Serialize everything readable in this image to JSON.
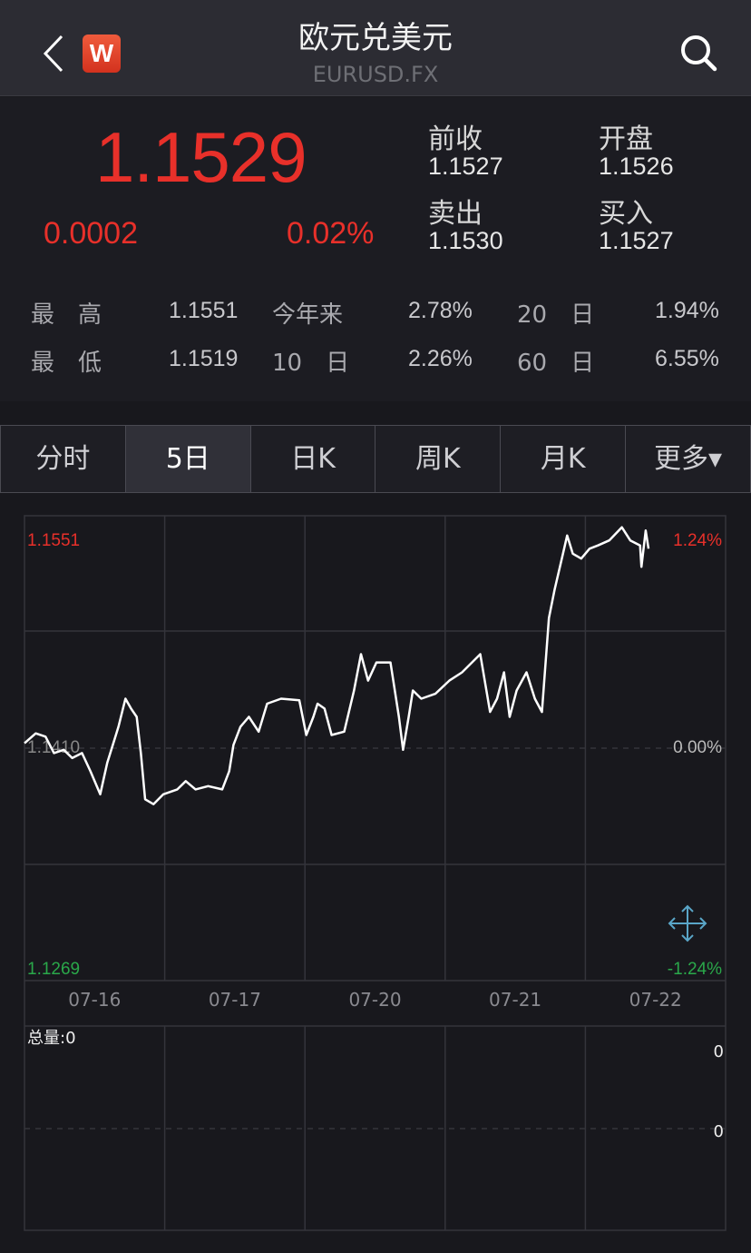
{
  "header": {
    "title": "欧元兑美元",
    "symbol": "EURUSD.FX",
    "back_icon": "chevron-left-icon",
    "logo_text": "W",
    "search_icon": "search-icon"
  },
  "quote": {
    "price": "1.1529",
    "change": "0.0002",
    "change_pct": "0.02%",
    "up_color": "#e8302a",
    "prev_close_label": "前收",
    "prev_close": "1.1527",
    "open_label": "开盘",
    "open": "1.1526",
    "sell_label": "卖出",
    "sell": "1.1530",
    "buy_label": "买入",
    "buy": "1.1527"
  },
  "stats": [
    {
      "label": "最　高",
      "value": "1.1551",
      "label2": "今年来",
      "value2": "2.78%",
      "label3": "20　日",
      "value3": "1.94%"
    },
    {
      "label": "最　低",
      "value": "1.1519",
      "label2": "10　日",
      "value2": "2.26%",
      "label3": "60　日",
      "value3": "6.55%"
    }
  ],
  "tabs": [
    {
      "label": "分时"
    },
    {
      "label": "5日",
      "active": true
    },
    {
      "label": "日K"
    },
    {
      "label": "周K"
    },
    {
      "label": "月K"
    },
    {
      "label": "更多▾"
    }
  ],
  "chart_data": {
    "type": "line",
    "ylim": [
      1.1269,
      1.1551
    ],
    "base": 1.141,
    "y_labels": {
      "top": "1.1551",
      "mid": "1.1410",
      "bottom": "1.1269",
      "top_pct": "1.24%",
      "mid_pct": "0.00%",
      "bottom_pct": "-1.24%"
    },
    "categories": [
      "07-16",
      "07-17",
      "07-20",
      "07-21",
      "07-22"
    ],
    "points": [
      [
        0,
        1.1413
      ],
      [
        0.08,
        1.1419
      ],
      [
        0.15,
        1.1417
      ],
      [
        0.21,
        1.1407
      ],
      [
        0.28,
        1.1409
      ],
      [
        0.34,
        1.1404
      ],
      [
        0.41,
        1.1407
      ],
      [
        0.47,
        1.1396
      ],
      [
        0.54,
        1.1382
      ],
      [
        0.59,
        1.1401
      ],
      [
        0.63,
        1.1412
      ],
      [
        0.67,
        1.1423
      ],
      [
        0.72,
        1.144
      ],
      [
        0.76,
        1.1434
      ],
      [
        0.8,
        1.1429
      ],
      [
        0.83,
        1.1407
      ],
      [
        0.86,
        1.1379
      ],
      [
        0.92,
        1.1376
      ],
      [
        0.99,
        1.1382
      ],
      [
        1.09,
        1.1385
      ],
      [
        1.15,
        1.139
      ],
      [
        1.22,
        1.1385
      ],
      [
        1.31,
        1.1387
      ],
      [
        1.41,
        1.1385
      ],
      [
        1.46,
        1.1396
      ],
      [
        1.49,
        1.1412
      ],
      [
        1.54,
        1.1423
      ],
      [
        1.6,
        1.1429
      ],
      [
        1.67,
        1.142
      ],
      [
        1.73,
        1.1437
      ],
      [
        1.83,
        1.144
      ],
      [
        1.96,
        1.1439
      ],
      [
        2.01,
        1.1418
      ],
      [
        2.06,
        1.1429
      ],
      [
        2.09,
        1.1437
      ],
      [
        2.14,
        1.1434
      ],
      [
        2.19,
        1.1418
      ],
      [
        2.28,
        1.142
      ],
      [
        2.35,
        1.1445
      ],
      [
        2.4,
        1.1467
      ],
      [
        2.45,
        1.1451
      ],
      [
        2.51,
        1.1462
      ],
      [
        2.61,
        1.1462
      ],
      [
        2.67,
        1.1429
      ],
      [
        2.7,
        1.1409
      ],
      [
        2.74,
        1.1429
      ],
      [
        2.77,
        1.1445
      ],
      [
        2.83,
        1.144
      ],
      [
        2.93,
        1.1443
      ],
      [
        3.03,
        1.1451
      ],
      [
        3.12,
        1.1456
      ],
      [
        3.25,
        1.1467
      ],
      [
        3.32,
        1.1432
      ],
      [
        3.37,
        1.144
      ],
      [
        3.42,
        1.1456
      ],
      [
        3.46,
        1.1429
      ],
      [
        3.51,
        1.1445
      ],
      [
        3.58,
        1.1456
      ],
      [
        3.64,
        1.144
      ],
      [
        3.69,
        1.1432
      ],
      [
        3.74,
        1.1489
      ],
      [
        3.78,
        1.1506
      ],
      [
        3.84,
        1.1528
      ],
      [
        3.87,
        1.1539
      ],
      [
        3.91,
        1.1528
      ],
      [
        3.97,
        1.1525
      ],
      [
        4.03,
        1.1531
      ],
      [
        4.09,
        1.1533
      ],
      [
        4.17,
        1.1536
      ],
      [
        4.26,
        1.1544
      ],
      [
        4.32,
        1.1536
      ],
      [
        4.39,
        1.1533
      ],
      [
        4.4,
        1.152
      ],
      [
        4.43,
        1.1542
      ],
      [
        4.45,
        1.1531
      ]
    ],
    "up_color": "#e8302a",
    "down_color": "#2aa84a",
    "line_color": "#ffffff",
    "grid": true
  },
  "volume": {
    "label": "总量:0",
    "ticks": [
      "0",
      "0"
    ]
  },
  "expand_icon": "expand-arrows-icon"
}
